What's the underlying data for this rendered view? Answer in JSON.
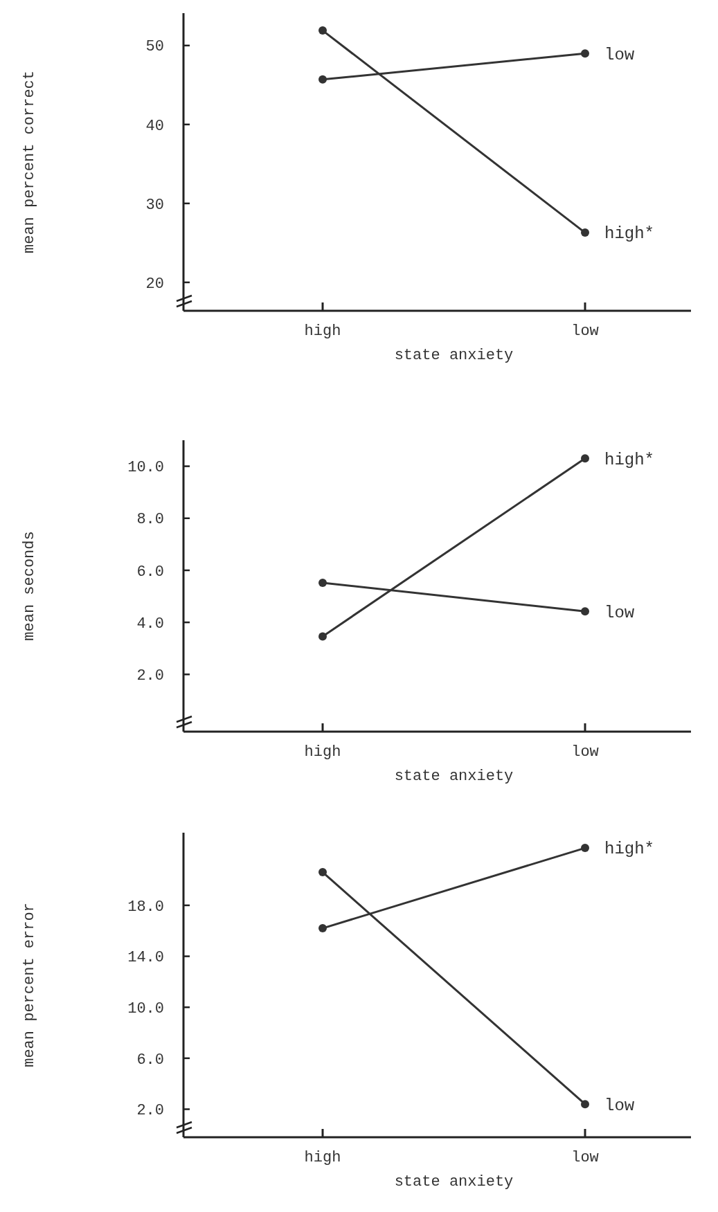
{
  "chart_data": [
    {
      "type": "line",
      "categories": [
        "high",
        "low"
      ],
      "xlabel": "state anxiety",
      "ylabel": "mean percent correct",
      "ylim": [
        16.4,
        54.1
      ],
      "yticks": [
        20,
        30,
        40,
        50
      ],
      "marker": "circle",
      "grid": false,
      "legend": false,
      "series": [
        {
          "name": "high*",
          "color": "#333333",
          "values": [
            51.9,
            26.3
          ]
        },
        {
          "name": "low",
          "color": "#333333",
          "values": [
            45.7,
            49.0
          ]
        }
      ]
    },
    {
      "type": "line",
      "categories": [
        "high",
        "low"
      ],
      "xlabel": "state anxiety",
      "ylabel": "mean seconds",
      "ylim": [
        -0.2,
        11.0
      ],
      "yticks": [
        {
          "value": 2,
          "label": "2.0"
        },
        {
          "value": 4,
          "label": "4.0"
        },
        {
          "value": 6,
          "label": "6.0"
        },
        {
          "value": 8,
          "label": "8.0"
        },
        {
          "value": 10,
          "label": "10.0"
        }
      ],
      "marker": "circle",
      "grid": false,
      "legend": false,
      "series": [
        {
          "name": "high*",
          "color": "#333333",
          "values": [
            3.46,
            10.3
          ]
        },
        {
          "name": "low",
          "color": "#333333",
          "values": [
            5.52,
            4.42
          ]
        }
      ]
    },
    {
      "type": "line",
      "categories": [
        "high",
        "low"
      ],
      "xlabel": "state anxiety",
      "ylabel": "mean percent error",
      "ylim": [
        -0.2,
        23.7
      ],
      "yticks": [
        {
          "value": 2,
          "label": "2.0"
        },
        {
          "value": 6,
          "label": "6.0"
        },
        {
          "value": 10,
          "label": "10.0"
        },
        {
          "value": 14,
          "label": "14.0"
        },
        {
          "value": 18,
          "label": "18.0"
        }
      ],
      "marker": "circle",
      "grid": false,
      "legend": false,
      "series": [
        {
          "name": "high*",
          "color": "#333333",
          "values": [
            16.2,
            22.5
          ]
        },
        {
          "name": "low",
          "color": "#333333",
          "values": [
            20.6,
            2.4
          ]
        }
      ]
    }
  ]
}
